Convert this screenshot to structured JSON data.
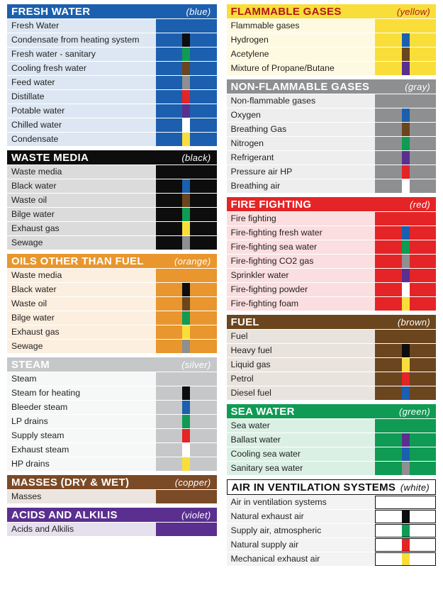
{
  "palette": {
    "blue": "#1b5fae",
    "black": "#0d0d0d",
    "orange": "#e8962d",
    "silver": "#c5c7c9",
    "copper": "#7b4a26",
    "violet": "#5a2f8f",
    "yellow": "#f9de3a",
    "gray": "#8e8f91",
    "red": "#e42426",
    "brown": "#6b451e",
    "green": "#0f9b53",
    "white": "#ffffff"
  },
  "row_tint_alpha": "26",
  "columns": [
    [
      {
        "title": "FRESH WATER",
        "color_name": "blue",
        "main": "blue",
        "header_text": "#ffffff",
        "rows": [
          {
            "name": "Fresh Water",
            "stripe": null
          },
          {
            "name": "Condensate from heating system",
            "stripe": "black"
          },
          {
            "name": "Fresh water - sanitary",
            "stripe": "green"
          },
          {
            "name": "Cooling fresh water",
            "stripe": "brown"
          },
          {
            "name": "Feed water",
            "stripe": "gray"
          },
          {
            "name": "Distillate",
            "stripe": "red"
          },
          {
            "name": "Potable water",
            "stripe": "violet"
          },
          {
            "name": "Chilled water",
            "stripe": "white"
          },
          {
            "name": "Condensate",
            "stripe": "yellow"
          }
        ]
      },
      {
        "title": "WASTE MEDIA",
        "color_name": "black",
        "main": "black",
        "header_text": "#ffffff",
        "rows": [
          {
            "name": "Waste media",
            "stripe": null
          },
          {
            "name": "Black water",
            "stripe": "blue"
          },
          {
            "name": "Waste oil",
            "stripe": "brown"
          },
          {
            "name": "Bilge water",
            "stripe": "green"
          },
          {
            "name": "Exhaust gas",
            "stripe": "yellow"
          },
          {
            "name": "Sewage",
            "stripe": "gray"
          }
        ]
      },
      {
        "title": "OILS OTHER THAN FUEL",
        "color_name": "orange",
        "main": "orange",
        "header_text": "#ffffff",
        "rows": [
          {
            "name": "Waste media",
            "stripe": null
          },
          {
            "name": "Black water",
            "stripe": "black"
          },
          {
            "name": "Waste oil",
            "stripe": "brown"
          },
          {
            "name": "Bilge water",
            "stripe": "green"
          },
          {
            "name": "Exhaust gas",
            "stripe": "yellow"
          },
          {
            "name": "Sewage",
            "stripe": "gray"
          }
        ]
      },
      {
        "title": "STEAM",
        "color_name": "silver",
        "main": "silver",
        "header_text": "#ffffff",
        "rows": [
          {
            "name": "Steam",
            "stripe": null
          },
          {
            "name": "Steam for heating",
            "stripe": "black"
          },
          {
            "name": "Bleeder steam",
            "stripe": "blue"
          },
          {
            "name": "LP drains",
            "stripe": "green"
          },
          {
            "name": "Supply steam",
            "stripe": "red"
          },
          {
            "name": "Exhaust steam",
            "stripe": "white"
          },
          {
            "name": "HP drains",
            "stripe": "yellow"
          }
        ]
      },
      {
        "title": "MASSES (DRY & WET)",
        "color_name": "copper",
        "main": "copper",
        "header_text": "#ffffff",
        "rows": [
          {
            "name": "Masses",
            "stripe": null
          }
        ]
      },
      {
        "title": "ACIDS AND ALKILIS",
        "color_name": "violet",
        "main": "violet",
        "header_text": "#ffffff",
        "rows": [
          {
            "name": "Acids and Alkilis",
            "stripe": null
          }
        ]
      }
    ],
    [
      {
        "title": "FLAMMABLE GASES",
        "color_name": "yellow",
        "main": "yellow",
        "header_text": "#b01818",
        "rows": [
          {
            "name": "Flammable gases",
            "stripe": null
          },
          {
            "name": "Hydrogen",
            "stripe": "blue"
          },
          {
            "name": "Acetylene",
            "stripe": "brown"
          },
          {
            "name": "Mixture of Propane/Butane",
            "stripe": "violet"
          }
        ]
      },
      {
        "title": "NON-FLAMMABLE GASES",
        "color_name": "gray",
        "main": "gray",
        "header_text": "#ffffff",
        "rows": [
          {
            "name": "Non-flammable gases",
            "stripe": null
          },
          {
            "name": "Oxygen",
            "stripe": "blue"
          },
          {
            "name": "Breathing Gas",
            "stripe": "brown"
          },
          {
            "name": "Nitrogen",
            "stripe": "green"
          },
          {
            "name": "Refrigerant",
            "stripe": "violet"
          },
          {
            "name": "Pressure air HP",
            "stripe": "red"
          },
          {
            "name": "Breathing air",
            "stripe": "white"
          }
        ]
      },
      {
        "title": "FIRE FIGHTING",
        "color_name": "red",
        "main": "red",
        "header_text": "#ffffff",
        "rows": [
          {
            "name": "Fire fighting",
            "stripe": null
          },
          {
            "name": "Fire-fighting fresh water",
            "stripe": "blue"
          },
          {
            "name": "Fire-fighting sea water",
            "stripe": "green"
          },
          {
            "name": "Fire-fighting CO2 gas",
            "stripe": "gray"
          },
          {
            "name": "Sprinkler water",
            "stripe": "violet"
          },
          {
            "name": "Fire-fighting powder",
            "stripe": "white"
          },
          {
            "name": "Fire-fighting foam",
            "stripe": "yellow"
          }
        ]
      },
      {
        "title": "FUEL",
        "color_name": "brown",
        "main": "brown",
        "header_text": "#ffffff",
        "rows": [
          {
            "name": "Fuel",
            "stripe": null
          },
          {
            "name": "Heavy fuel",
            "stripe": "black"
          },
          {
            "name": "Liquid gas",
            "stripe": "yellow"
          },
          {
            "name": "Petrol",
            "stripe": "red"
          },
          {
            "name": "Diesel fuel",
            "stripe": "blue"
          }
        ]
      },
      {
        "title": "SEA WATER",
        "color_name": "green",
        "main": "green",
        "header_text": "#ffffff",
        "rows": [
          {
            "name": "Sea water",
            "stripe": null
          },
          {
            "name": "Ballast water",
            "stripe": "violet"
          },
          {
            "name": "Cooling sea water",
            "stripe": "blue"
          },
          {
            "name": "Sanitary sea water",
            "stripe": "gray"
          }
        ]
      },
      {
        "title": "AIR IN VENTILATION SYSTEMS",
        "color_name": "white",
        "main": "white",
        "header_text": "#111111",
        "header_border": true,
        "rows": [
          {
            "name": "Air in ventilation systems",
            "stripe": null,
            "swatch_border": true
          },
          {
            "name": "Natural exhaust air",
            "stripe": "black",
            "swatch_border": true
          },
          {
            "name": "Supply air, atmospheric",
            "stripe": "green",
            "swatch_border": true
          },
          {
            "name": "Natural supply air",
            "stripe": "red",
            "swatch_border": true
          },
          {
            "name": "Mechanical exhaust air",
            "stripe": "yellow",
            "swatch_border": true
          }
        ]
      }
    ]
  ]
}
